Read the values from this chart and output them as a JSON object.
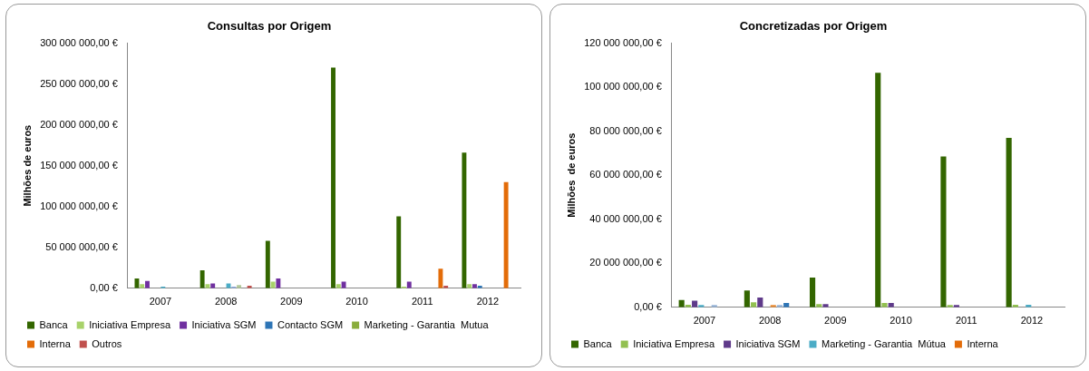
{
  "chart_data": [
    {
      "type": "bar",
      "title": "Consultas por Origem",
      "ylabel": "Milhões de euros",
      "categories": [
        "2007",
        "2008",
        "2009",
        "2010",
        "2011",
        "2012"
      ],
      "ylim": [
        0,
        300000000
      ],
      "yticks": [
        {
          "value": 0,
          "label": "0,00 €"
        },
        {
          "value": 50000000,
          "label": "50 000 000,00 €"
        },
        {
          "value": 100000000,
          "label": "100 000 000,00 €"
        },
        {
          "value": 150000000,
          "label": "150 000 000,00 €"
        },
        {
          "value": 200000000,
          "label": "200 000 000,00 €"
        },
        {
          "value": 250000000,
          "label": "250 000 000,00 €"
        },
        {
          "value": 300000000,
          "label": "300 000 000,00 €"
        }
      ],
      "legend": "bottom",
      "series": [
        {
          "name": "Banca",
          "color": "#336600",
          "values": [
            12000000,
            22000000,
            58000000,
            270000000,
            88000000,
            166000000
          ]
        },
        {
          "name": "Iniciativa Empresa",
          "color": "#a8d26a",
          "values": [
            5000000,
            5000000,
            8000000,
            5000000,
            2000000,
            5000000
          ]
        },
        {
          "name": "Iniciativa SGM",
          "color": "#7030a0",
          "values": [
            9000000,
            6000000,
            12000000,
            8000000,
            8000000,
            5000000
          ]
        },
        {
          "name": "Contacto SGM",
          "color": "#2e75b6",
          "values": [
            0,
            0,
            0,
            0,
            0,
            3000000
          ]
        },
        {
          "name": "Marketing - Garantia  Mutua",
          "color": "#8aad3c",
          "values": [
            0,
            0,
            0,
            0,
            0,
            0
          ]
        },
        {
          "color": "#4bacc6",
          "values": [
            2000000,
            6000000,
            0,
            0,
            0,
            0
          ]
        },
        {
          "color": "#8ea9db",
          "values": [
            0,
            2000000,
            0,
            0,
            0,
            0
          ]
        },
        {
          "color": "#b3c99a",
          "values": [
            0,
            4000000,
            0,
            0,
            0,
            0
          ]
        },
        {
          "name": "Interna",
          "color": "#e36c09",
          "values": [
            0,
            0,
            0,
            0,
            24000000,
            130000000
          ]
        },
        {
          "name": "Outros",
          "color": "#c0504d",
          "values": [
            0,
            3000000,
            0,
            0,
            3000000,
            0
          ]
        }
      ]
    },
    {
      "type": "bar",
      "title": "Concretizadas por Origem",
      "ylabel": "Milhões  de euros",
      "categories": [
        "2007",
        "2008",
        "2009",
        "2010",
        "2011",
        "2012"
      ],
      "ylim": [
        0,
        120000000
      ],
      "yticks": [
        {
          "value": 0,
          "label": "0,00 €"
        },
        {
          "value": 20000000,
          "label": "20 000 000,00 €"
        },
        {
          "value": 40000000,
          "label": "40 000 000,00 €"
        },
        {
          "value": 60000000,
          "label": "60 000 000,00 €"
        },
        {
          "value": 80000000,
          "label": "80 000 000,00 €"
        },
        {
          "value": 100000000,
          "label": "100 000 000,00 €"
        },
        {
          "value": 120000000,
          "label": "120 000 000,00 €"
        }
      ],
      "legend": "bottom",
      "series": [
        {
          "name": "Banca",
          "color": "#336600",
          "values": [
            3300000,
            7600000,
            13500000,
            106500000,
            68500000,
            77000000
          ]
        },
        {
          "name": "Iniciativa Empresa",
          "color": "#92c050",
          "values": [
            1200000,
            2300000,
            1500000,
            2000000,
            1000000,
            1200000
          ]
        },
        {
          "name": "Iniciativa SGM",
          "color": "#5f3a8a",
          "values": [
            3000000,
            4400000,
            1500000,
            2000000,
            1000000,
            0
          ]
        },
        {
          "name": "Marketing - Garantia  Mútua",
          "color": "#4bacc6",
          "values": [
            1000000,
            0,
            0,
            0,
            0,
            1200000
          ]
        },
        {
          "color": "#e98b34",
          "values": [
            0,
            1000000,
            0,
            0,
            0,
            0
          ]
        },
        {
          "color": "#95b3d7",
          "values": [
            1000000,
            1000000,
            0,
            0,
            0,
            0
          ]
        },
        {
          "color": "#2e75b6",
          "values": [
            0,
            2000000,
            0,
            0,
            0,
            0
          ]
        },
        {
          "name": "Interna",
          "color": "#e36c09",
          "values": [
            0,
            0,
            0,
            0,
            0,
            0
          ]
        }
      ]
    }
  ]
}
